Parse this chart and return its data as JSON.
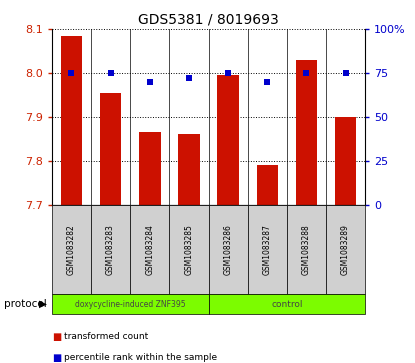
{
  "title": "GDS5381 / 8019693",
  "samples": [
    "GSM1083282",
    "GSM1083283",
    "GSM1083284",
    "GSM1083285",
    "GSM1083286",
    "GSM1083287",
    "GSM1083288",
    "GSM1083289"
  ],
  "transformed_counts": [
    8.085,
    7.955,
    7.865,
    7.862,
    7.995,
    7.79,
    8.03,
    7.9
  ],
  "percentile_ranks": [
    75,
    75,
    70,
    72,
    75,
    70,
    75,
    75
  ],
  "ylim_left": [
    7.7,
    8.1
  ],
  "ylim_right": [
    0,
    100
  ],
  "yticks_left": [
    7.7,
    7.8,
    7.9,
    8.0,
    8.1
  ],
  "yticks_right": [
    0,
    25,
    50,
    75,
    100
  ],
  "bar_color": "#cc1100",
  "dot_color": "#0000cc",
  "group1_label": "doxycycline-induced ZNF395",
  "group2_label": "control",
  "group_color": "#7CFC00",
  "protocol_label": "protocol",
  "legend_red_label": "transformed count",
  "legend_blue_label": "percentile rank within the sample",
  "tick_label_color_left": "#cc2200",
  "tick_label_color_right": "#0000cc",
  "bar_width": 0.55,
  "dot_size": 25,
  "sample_box_color": "#d0d0d0"
}
